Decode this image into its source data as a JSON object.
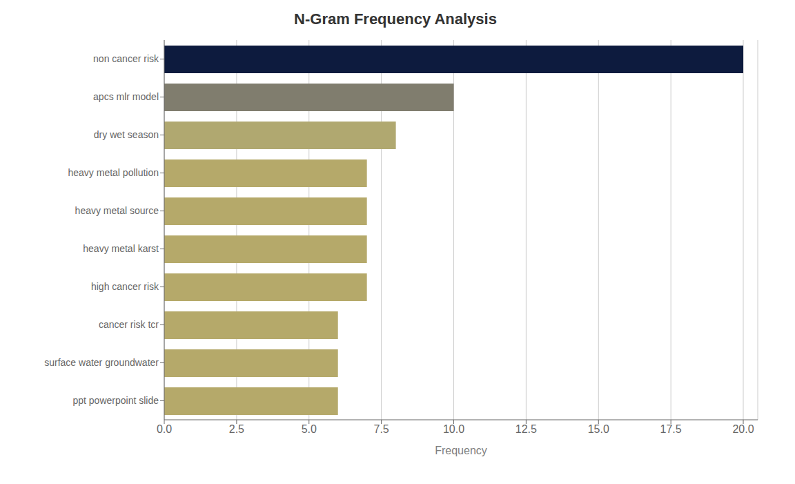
{
  "chart_data": {
    "type": "bar",
    "orientation": "horizontal",
    "title": "N-Gram Frequency Analysis",
    "xlabel": "Frequency",
    "categories": [
      "ppt powerpoint slide",
      "surface water groundwater",
      "cancer risk tcr",
      "high cancer risk",
      "heavy metal karst",
      "heavy metal source",
      "heavy metal pollution",
      "dry wet season",
      "apcs mlr model",
      "non cancer risk"
    ],
    "values": [
      6,
      6,
      6,
      7,
      7,
      7,
      7,
      8,
      10,
      20
    ],
    "colors": [
      "#b5a96a",
      "#b5a96a",
      "#b5a96a",
      "#b5a96a",
      "#b5a96a",
      "#b5a96a",
      "#b5a96a",
      "#b0a870",
      "#807d6e",
      "#0d1b3e"
    ],
    "xlim": [
      0,
      20.5
    ],
    "xticks": [
      {
        "value": 0,
        "label": "0.0"
      },
      2.5,
      {
        "value": 5,
        "label": "5.0"
      },
      7.5,
      {
        "value": 10,
        "label": "10.0"
      },
      12.5,
      {
        "value": 15,
        "label": "15.0"
      },
      17.5,
      {
        "value": 20,
        "label": "20.0"
      }
    ],
    "grid": true
  }
}
